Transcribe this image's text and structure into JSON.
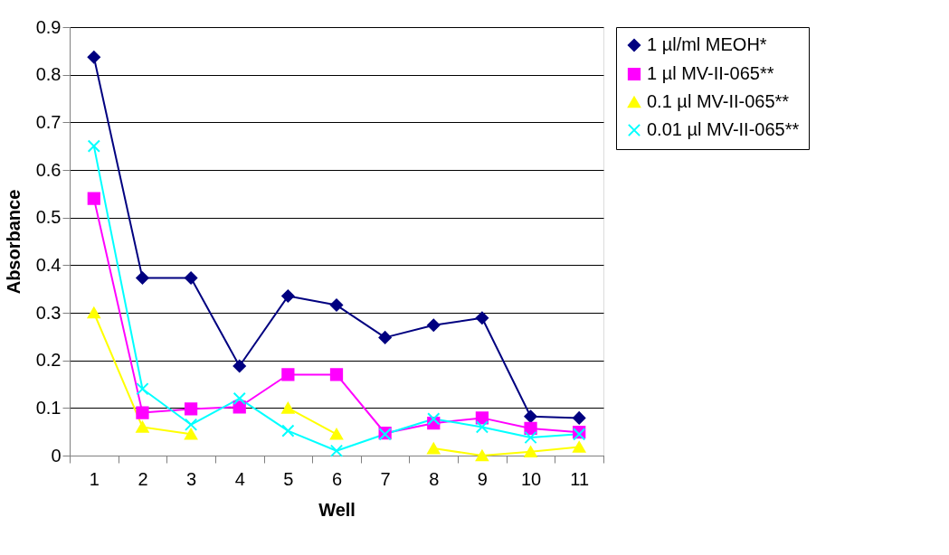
{
  "chart_data": {
    "type": "line",
    "xlabel": "Well",
    "ylabel": "Absorbance",
    "categories": [
      "1",
      "2",
      "3",
      "4",
      "5",
      "6",
      "7",
      "8",
      "9",
      "10",
      "11"
    ],
    "ylim": [
      0,
      0.9
    ],
    "yticks": [
      0,
      0.1,
      0.2,
      0.3,
      0.4,
      0.5,
      0.6,
      0.7,
      0.8,
      0.9
    ],
    "grid": "y",
    "legend": "right",
    "series": [
      {
        "name": "1 µl/ml MEOH*",
        "color": "#000080",
        "marker": "diamond",
        "values": [
          0.837,
          0.373,
          0.373,
          0.188,
          0.335,
          0.316,
          0.248,
          0.274,
          0.289,
          0.082,
          0.079
        ]
      },
      {
        "name": "1 µl MV-II-065**",
        "color": "#ff00ff",
        "marker": "square",
        "values": [
          0.54,
          0.09,
          0.098,
          0.102,
          0.17,
          0.17,
          0.047,
          0.068,
          0.079,
          0.057,
          0.049
        ]
      },
      {
        "name": "0.1 µl MV-II-065**",
        "color": "#ffff00",
        "marker": "triangle",
        "values": [
          0.3,
          0.06,
          0.045,
          null,
          0.1,
          0.045,
          null,
          0.015,
          0.0,
          0.008,
          0.018
        ]
      },
      {
        "name": "0.01 µl MV-II-065**",
        "color": "#00ffff",
        "marker": "cross",
        "values": [
          0.65,
          0.14,
          0.065,
          0.12,
          0.052,
          0.01,
          0.045,
          0.077,
          0.06,
          0.038,
          0.045
        ]
      }
    ]
  }
}
